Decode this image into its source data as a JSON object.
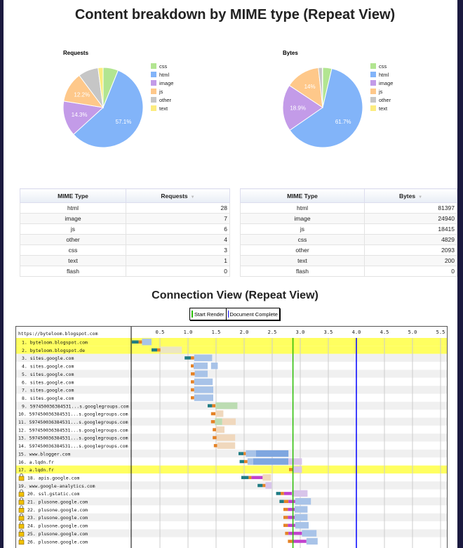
{
  "page_title": "Content breakdown by MIME type (Repeat View)",
  "colors": {
    "css": "#b2e591",
    "html": "#82b4f9",
    "image": "#c39be8",
    "js": "#fec88a",
    "other": "#c6c6c6",
    "text": "#fcec7f"
  },
  "chart_data": [
    {
      "type": "pie",
      "title": "Requests",
      "categories": [
        "css",
        "html",
        "image",
        "js",
        "other",
        "text"
      ],
      "values": [
        3,
        28,
        7,
        6,
        4,
        1
      ],
      "data_labels": {
        "html": "57.1%",
        "image": "14.3%",
        "js": "12.2%"
      },
      "legend": "right"
    },
    {
      "type": "pie",
      "title": "Bytes",
      "categories": [
        "css",
        "html",
        "image",
        "js",
        "other",
        "text"
      ],
      "values": [
        4829,
        81397,
        24940,
        18415,
        2093,
        200
      ],
      "data_labels": {
        "html": "61.7%",
        "image": "18.9%",
        "js": "14%"
      },
      "legend": "right"
    }
  ],
  "requests_table": {
    "headers": [
      "MIME Type",
      "Requests"
    ],
    "rows": [
      [
        "html",
        "28"
      ],
      [
        "image",
        "7"
      ],
      [
        "js",
        "6"
      ],
      [
        "other",
        "4"
      ],
      [
        "css",
        "3"
      ],
      [
        "text",
        "1"
      ],
      [
        "flash",
        "0"
      ]
    ]
  },
  "bytes_table": {
    "headers": [
      "MIME Type",
      "Bytes"
    ],
    "rows": [
      [
        "html",
        "81397"
      ],
      [
        "image",
        "24940"
      ],
      [
        "js",
        "18415"
      ],
      [
        "css",
        "4829"
      ],
      [
        "other",
        "2093"
      ],
      [
        "text",
        "200"
      ],
      [
        "flash",
        "0"
      ]
    ]
  },
  "connection_view": {
    "title": "Connection View (Repeat View)",
    "legend": {
      "start_render": "Start Render",
      "document_complete": "Document Complete",
      "start_render_color": "#28bc00",
      "document_complete_color": "#0000ff"
    },
    "url": "https://byteloom.blogspot.com",
    "scale_ticks": [
      "0.5",
      "1.0",
      "1.5",
      "2.0",
      "2.5",
      "3.0",
      "3.5",
      "4.0",
      "4.5",
      "5.0",
      "5.5"
    ],
    "start_render_s": 2.87,
    "document_complete_s": 4.0,
    "rows": [
      {
        "label": "1. byteloom.blogspot.com",
        "highlight": true,
        "lock": false,
        "segs": [
          [
            0,
            0.12,
            "dns"
          ],
          [
            0.12,
            0.18,
            "connect"
          ],
          [
            0.18,
            0.35,
            "html"
          ]
        ]
      },
      {
        "label": "2. byteloom.blogspot.de",
        "highlight": true,
        "lock": false,
        "segs": [
          [
            0.35,
            0.45,
            "dns"
          ],
          [
            0.45,
            0.51,
            "connect"
          ],
          [
            0.51,
            0.89,
            "cream"
          ]
        ]
      },
      {
        "label": "3. sites.google.com",
        "lock": false,
        "segs": [
          [
            0.94,
            1.05,
            "dns"
          ],
          [
            1.05,
            1.11,
            "connect"
          ],
          [
            1.11,
            1.43,
            "html"
          ]
        ]
      },
      {
        "label": "4. sites.google.com",
        "lock": false,
        "segs": [
          [
            1.05,
            1.1,
            "connect"
          ],
          [
            1.1,
            1.35,
            "html"
          ],
          [
            1.41,
            1.53,
            "html"
          ]
        ]
      },
      {
        "label": "5. sites.google.com",
        "lock": false,
        "segs": [
          [
            1.05,
            1.12,
            "connect"
          ],
          [
            1.12,
            1.35,
            "html"
          ]
        ]
      },
      {
        "label": "6. sites.google.com",
        "lock": false,
        "segs": [
          [
            1.05,
            1.11,
            "connect"
          ],
          [
            1.11,
            1.44,
            "html"
          ]
        ]
      },
      {
        "label": "7. sites.google.com",
        "lock": false,
        "segs": [
          [
            1.05,
            1.11,
            "connect"
          ],
          [
            1.11,
            1.45,
            "html"
          ]
        ]
      },
      {
        "label": "8. sites.google.com",
        "lock": false,
        "segs": [
          [
            1.05,
            1.11,
            "connect"
          ],
          [
            1.11,
            1.45,
            "html"
          ]
        ]
      },
      {
        "label": "9. 597450036384531...s.googlegroups.com",
        "lock": false,
        "segs": [
          [
            1.35,
            1.43,
            "dns"
          ],
          [
            1.43,
            1.49,
            "connect"
          ],
          [
            1.49,
            1.88,
            "css"
          ]
        ]
      },
      {
        "label": "10. 597450036384531...s.googlegroups.com",
        "lock": false,
        "segs": [
          [
            1.41,
            1.49,
            "connect"
          ],
          [
            1.49,
            1.63,
            "js"
          ]
        ]
      },
      {
        "label": "11. 597450036384531...s.googlegroups.com",
        "lock": false,
        "segs": [
          [
            1.41,
            1.48,
            "connect"
          ],
          [
            1.48,
            1.61,
            "css"
          ],
          [
            1.61,
            1.85,
            "js"
          ]
        ]
      },
      {
        "label": "12. 597450036384531...s.googlegroups.com",
        "lock": false,
        "segs": [
          [
            1.44,
            1.5,
            "connect"
          ],
          [
            1.5,
            1.65,
            "js"
          ]
        ]
      },
      {
        "label": "13. 597450036384531...s.googlegroups.com",
        "lock": false,
        "segs": [
          [
            1.44,
            1.51,
            "connect"
          ],
          [
            1.51,
            1.84,
            "js"
          ]
        ]
      },
      {
        "label": "14. 597450036384531...s.googlegroups.com",
        "lock": false,
        "segs": [
          [
            1.46,
            1.52,
            "connect"
          ],
          [
            1.52,
            1.84,
            "js"
          ]
        ]
      },
      {
        "label": "15. www.blogger.com",
        "lock": false,
        "segs": [
          [
            1.9,
            1.99,
            "dns"
          ],
          [
            1.99,
            2.03,
            "connect"
          ],
          [
            2.03,
            2.21,
            "html"
          ],
          [
            2.21,
            2.79,
            "htmldark"
          ]
        ]
      },
      {
        "label": "16. a.lqdn.fr",
        "lock": false,
        "segs": [
          [
            1.92,
            2.0,
            "dns"
          ],
          [
            2.0,
            2.06,
            "connect"
          ],
          [
            2.06,
            2.16,
            "html"
          ],
          [
            2.16,
            2.79,
            "htmldark"
          ],
          [
            2.79,
            3.03,
            "image"
          ]
        ]
      },
      {
        "label": "17. a.lqdn.fr",
        "highlight": true,
        "lock": false,
        "segs": [
          [
            2.8,
            2.87,
            "connect"
          ],
          [
            2.87,
            3.03,
            "image"
          ]
        ]
      },
      {
        "label": "18. apis.google.com",
        "lock": true,
        "segs": [
          [
            1.95,
            2.08,
            "dns"
          ],
          [
            2.08,
            2.13,
            "connect"
          ],
          [
            2.13,
            2.33,
            "ssl"
          ],
          [
            2.33,
            2.48,
            "js"
          ]
        ]
      },
      {
        "label": "19. www.google-analytics.com",
        "lock": false,
        "segs": [
          [
            2.24,
            2.33,
            "dns"
          ],
          [
            2.33,
            2.38,
            "connect"
          ],
          [
            2.38,
            2.49,
            "image"
          ]
        ]
      },
      {
        "label": "20. ssl.gstatic.com",
        "lock": true,
        "segs": [
          [
            2.57,
            2.65,
            "dns"
          ],
          [
            2.65,
            2.71,
            "connect"
          ],
          [
            2.71,
            2.85,
            "ssl"
          ],
          [
            2.85,
            3.13,
            "image"
          ]
        ]
      },
      {
        "label": "21. plusone.google.com",
        "lock": true,
        "segs": [
          [
            2.63,
            2.71,
            "dns"
          ],
          [
            2.71,
            2.79,
            "connect"
          ],
          [
            2.79,
            2.91,
            "ssl"
          ],
          [
            2.91,
            3.19,
            "html"
          ]
        ]
      },
      {
        "label": "22. plusone.google.com",
        "lock": true,
        "segs": [
          [
            2.7,
            2.78,
            "connect"
          ],
          [
            2.78,
            2.9,
            "ssl"
          ],
          [
            2.9,
            3.13,
            "html"
          ]
        ]
      },
      {
        "label": "23. plusone.google.com",
        "lock": true,
        "segs": [
          [
            2.7,
            2.78,
            "connect"
          ],
          [
            2.78,
            2.9,
            "ssl"
          ],
          [
            2.9,
            3.13,
            "html"
          ]
        ]
      },
      {
        "label": "24. plusone.google.com",
        "lock": true,
        "segs": [
          [
            2.7,
            2.78,
            "connect"
          ],
          [
            2.78,
            2.91,
            "ssl"
          ],
          [
            2.91,
            3.15,
            "html"
          ]
        ]
      },
      {
        "label": "25. plusone.google.com",
        "lock": true,
        "segs": [
          [
            2.73,
            2.79,
            "connect"
          ],
          [
            2.79,
            3.03,
            "ssl"
          ],
          [
            3.03,
            3.29,
            "html"
          ]
        ]
      },
      {
        "label": "26. plusone.google.com",
        "lock": true,
        "segs": [
          [
            2.78,
            2.86,
            "connect"
          ],
          [
            2.86,
            3.11,
            "ssl"
          ],
          [
            3.11,
            3.31,
            "html"
          ]
        ]
      }
    ]
  }
}
